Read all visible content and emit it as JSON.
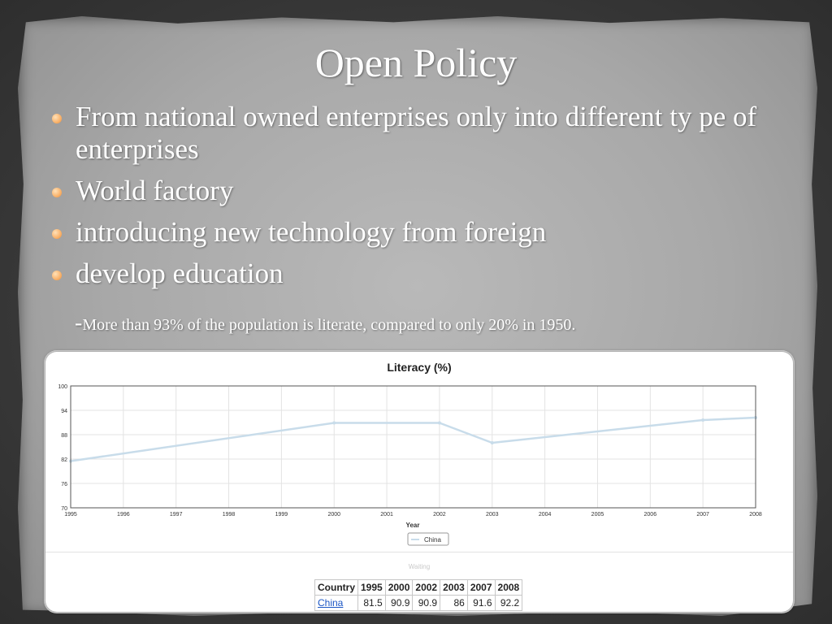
{
  "slide": {
    "title": "Open Policy",
    "bullets": [
      "From national owned enterprises only into different ty pe of enterprises",
      "World factory",
      "introducing new technology from foreign",
      "develop education"
    ],
    "note_dash": "-",
    "note": "More than 93% of the population is literate, compared to only 20% in 1950."
  },
  "chart_data": {
    "type": "line",
    "title": "Literacy (%)",
    "xlabel": "Year",
    "ylabel": "",
    "x": [
      1995,
      2000,
      2002,
      2003,
      2007,
      2008
    ],
    "x_ticks": [
      "1995",
      "1996",
      "1997",
      "1998",
      "1999",
      "2000",
      "2001",
      "2002",
      "2003",
      "2004",
      "2005",
      "2006",
      "2007",
      "2008"
    ],
    "y_ticks": [
      "100",
      "94",
      "88",
      "82",
      "76",
      "70"
    ],
    "ylim": [
      70,
      100
    ],
    "xlim": [
      1995,
      2008
    ],
    "grid": true,
    "legend": "bottom-center",
    "series": [
      {
        "name": "China",
        "values": [
          81.5,
          90.9,
          90.9,
          86,
          91.6,
          92.2
        ],
        "color": "#c8dcea"
      }
    ]
  },
  "status": {
    "waiting": "Waiting"
  },
  "table": {
    "headers": [
      "Country",
      "1995",
      "2000",
      "2002",
      "2003",
      "2007",
      "2008"
    ],
    "rows": [
      {
        "country": "China",
        "values": [
          "81.5",
          "90.9",
          "90.9",
          "86",
          "91.6",
          "92.2"
        ]
      }
    ]
  }
}
